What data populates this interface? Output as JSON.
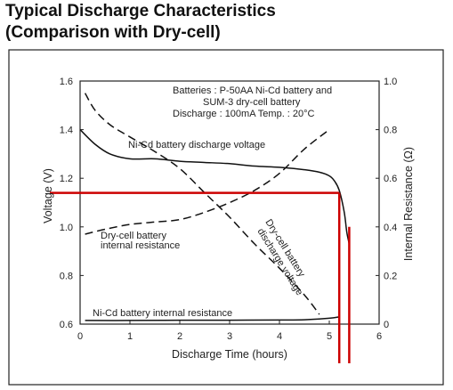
{
  "titles": {
    "line1": "Typical Discharge Characteristics",
    "line2": " (Comparison with Dry-cell)"
  },
  "chart_data": {
    "type": "line",
    "xlabel": "Discharge Time (hours)",
    "ylabel_left": "Voltage (V)",
    "ylabel_right": "Internal Resistance (Ω)",
    "xlim": [
      0,
      6
    ],
    "ylim_left": [
      0.6,
      1.6
    ],
    "ylim_right": [
      0,
      1.0
    ],
    "x_ticks": [
      0,
      1,
      2,
      3,
      4,
      5,
      6
    ],
    "y_ticks_left": [
      {
        "value": 0.6,
        "label": "0.6"
      },
      {
        "value": 0.8,
        "label": "0.8"
      },
      {
        "value": 1.0,
        "label": "1.0"
      },
      {
        "value": 1.2,
        "label": "1.2"
      },
      {
        "value": 1.4,
        "label": "1.4"
      },
      {
        "value": 1.6,
        "label": "1.6"
      }
    ],
    "y_ticks_right": [
      {
        "value": 0,
        "label": "0"
      },
      {
        "value": 0.2,
        "label": "0.2"
      },
      {
        "value": 0.4,
        "label": "0.4"
      },
      {
        "value": 0.6,
        "label": "0.6"
      },
      {
        "value": 0.8,
        "label": "0.8"
      },
      {
        "value": 1.0,
        "label": "1.0"
      }
    ],
    "grid": false,
    "info_lines": [
      "Batteries : P-50AA Ni-Cd battery and",
      "SUM-3 dry-cell battery",
      "Discharge : 100mA  Temp. : 20°C"
    ],
    "series": [
      {
        "name": "Ni-Cd battery discharge voltage",
        "axis": "left",
        "style": "solid",
        "x": [
          0,
          0.3,
          0.6,
          1.0,
          1.5,
          2.0,
          2.5,
          3.0,
          3.5,
          4.0,
          4.5,
          4.8,
          5.0,
          5.1,
          5.2,
          5.3,
          5.35,
          5.4
        ],
        "y": [
          1.4,
          1.34,
          1.3,
          1.28,
          1.28,
          1.27,
          1.265,
          1.26,
          1.25,
          1.245,
          1.235,
          1.225,
          1.21,
          1.19,
          1.15,
          1.06,
          0.98,
          0.93
        ]
      },
      {
        "name": "Dry-cell battery discharge voltage",
        "axis": "left",
        "style": "dashed",
        "x": [
          0.1,
          0.3,
          0.6,
          1.0,
          1.5,
          2.0,
          2.5,
          3.0,
          3.5,
          4.0,
          4.5,
          4.8
        ],
        "y": [
          1.55,
          1.48,
          1.42,
          1.37,
          1.31,
          1.24,
          1.14,
          1.04,
          0.93,
          0.83,
          0.72,
          0.64
        ]
      },
      {
        "name": "Dry-cell battery internal resistance",
        "axis": "right",
        "style": "dashed",
        "x": [
          0.1,
          0.5,
          1.0,
          1.5,
          2.0,
          2.5,
          3.0,
          3.5,
          4.0,
          4.5,
          5.0
        ],
        "y": [
          0.37,
          0.39,
          0.41,
          0.42,
          0.43,
          0.46,
          0.5,
          0.55,
          0.62,
          0.72,
          0.8
        ]
      },
      {
        "name": "Ni-Cd battery internal resistance",
        "axis": "right",
        "style": "solid",
        "x": [
          0.1,
          1.0,
          2.0,
          3.0,
          4.0,
          4.5,
          5.0,
          5.2
        ],
        "y": [
          0.015,
          0.015,
          0.016,
          0.016,
          0.017,
          0.018,
          0.024,
          0.03
        ]
      }
    ],
    "annotations": {
      "nicd_voltage": "Ni-Cd battery discharge voltage",
      "dry_resistance_l1": "Dry-cell battery",
      "dry_resistance_l2": "internal resistance",
      "dry_voltage_l1": "Dry-cell battery",
      "dry_voltage_l2": "discharge voltage",
      "nicd_resistance": "Ni-Cd battery internal resistance"
    },
    "markers": {
      "color": "#cc0000",
      "voltage_level": 1.14,
      "times": [
        5.2,
        5.4
      ]
    }
  }
}
